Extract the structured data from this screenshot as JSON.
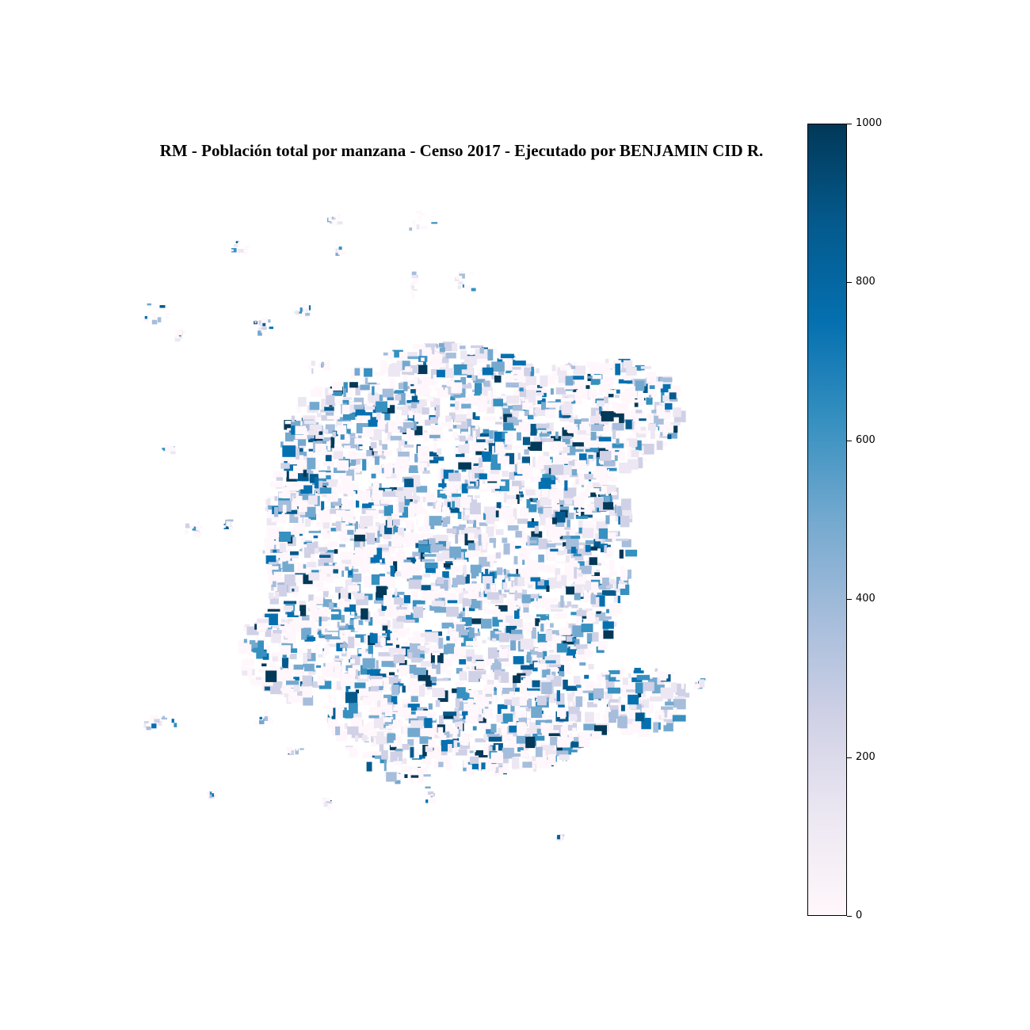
{
  "title": "RM - Población total por manzana - Censo 2017 - Ejecutado por BENJAMIN CID R.",
  "colorbar": {
    "min": 0,
    "max": 1000,
    "ticks": [
      "0",
      "200",
      "400",
      "600",
      "800",
      "1000"
    ],
    "colormap": "PuBu",
    "colors": [
      "#fff7fb",
      "#ece7f2",
      "#d0d1e6",
      "#a6bddb",
      "#74a9cf",
      "#3690c0",
      "#0570b0",
      "#045a8d",
      "#023858"
    ]
  }
}
